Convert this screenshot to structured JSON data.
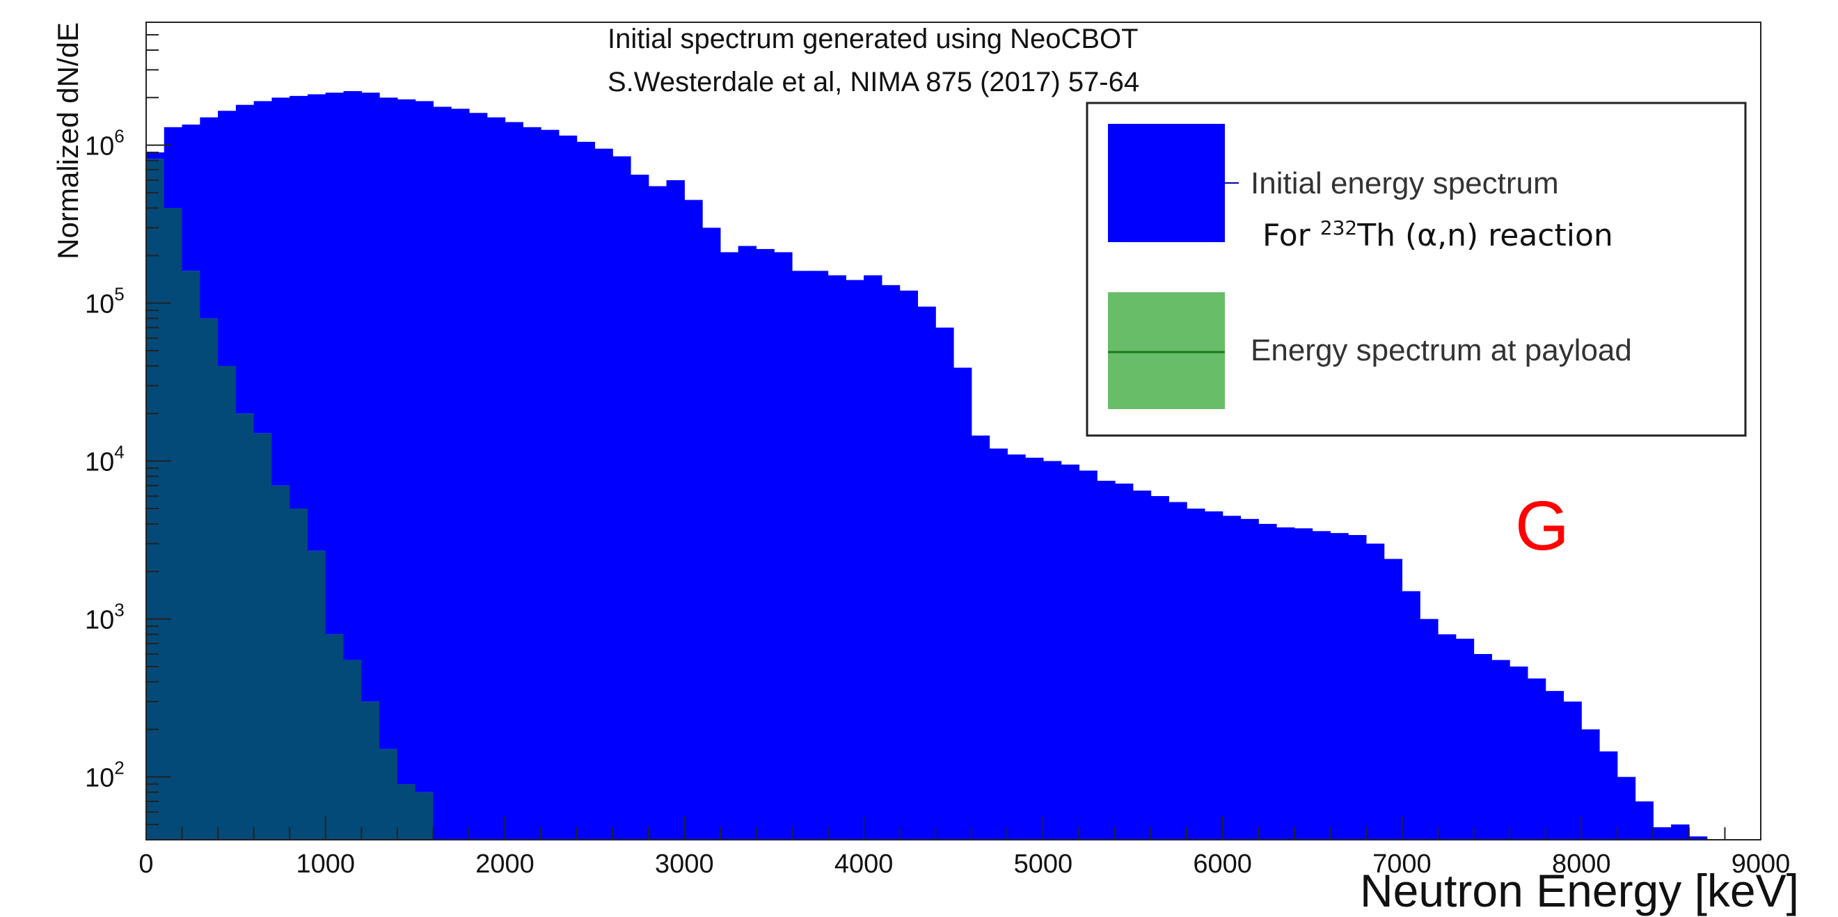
{
  "chart_data": {
    "type": "bar",
    "title": "",
    "xlabel": "Neutron Energy [keV]",
    "ylabel": "Normalized dN/dE",
    "xlim": [
      0,
      9000
    ],
    "ylim": [
      40,
      6000000
    ],
    "yscale": "log",
    "grid": false,
    "legend_position": "top-right",
    "bin_width": 100,
    "x_ticks": [
      "0",
      "1000",
      "2000",
      "3000",
      "4000",
      "5000",
      "6000",
      "7000",
      "8000",
      "9000"
    ],
    "y_ticks": [
      {
        "base": "10",
        "exp": "2",
        "value": 100
      },
      {
        "base": "10",
        "exp": "3",
        "value": 1000
      },
      {
        "base": "10",
        "exp": "4",
        "value": 10000
      },
      {
        "base": "10",
        "exp": "5",
        "value": 100000
      },
      {
        "base": "10",
        "exp": "6",
        "value": 1000000
      }
    ],
    "series": [
      {
        "name": "Initial energy spectrum",
        "color": "#0000ff",
        "values": [
          900000,
          1300000,
          1350000,
          1500000,
          1650000,
          1800000,
          1900000,
          2000000,
          2050000,
          2100000,
          2150000,
          2200000,
          2150000,
          2000000,
          1950000,
          1900000,
          1750000,
          1700000,
          1600000,
          1500000,
          1400000,
          1300000,
          1250000,
          1150000,
          1050000,
          950000,
          850000,
          650000,
          550000,
          600000,
          450000,
          300000,
          210000,
          230000,
          220000,
          210000,
          160000,
          160000,
          150000,
          140000,
          150000,
          130000,
          120000,
          95000,
          70000,
          39000,
          14500,
          12000,
          11000,
          10500,
          10000,
          9500,
          8700,
          7500,
          7200,
          6500,
          6000,
          5500,
          5000,
          4800,
          4500,
          4300,
          4000,
          3800,
          3750,
          3600,
          3500,
          3400,
          3000,
          2400,
          1500,
          1000,
          800,
          750,
          600,
          550,
          500,
          420,
          350,
          300,
          200,
          145,
          100,
          70,
          48,
          50,
          42,
          40,
          35,
          30,
          25
        ]
      },
      {
        "name": "Energy spectrum at payload",
        "color": "#35a835",
        "values": [
          820000,
          400000,
          160000,
          80000,
          40000,
          20000,
          15000,
          7000,
          5000,
          2700,
          800,
          550,
          300,
          150,
          90,
          80,
          0,
          0,
          0,
          0,
          0,
          0,
          0,
          0,
          0,
          0,
          0,
          0,
          0,
          0,
          0,
          0,
          0,
          0,
          0,
          0,
          0,
          0,
          0,
          0,
          0,
          0,
          0,
          0,
          0,
          0,
          0,
          0,
          0,
          0,
          0,
          0,
          0,
          0,
          0,
          0,
          0,
          0,
          0,
          0,
          0,
          0,
          0,
          0,
          0,
          0,
          0,
          0,
          0,
          0,
          0,
          0,
          0,
          0,
          0,
          0,
          0,
          0,
          0,
          0,
          0,
          0,
          0,
          0,
          0,
          0,
          0,
          0,
          0,
          0,
          0
        ]
      }
    ],
    "overlap_color": "#034a78",
    "annotations": {
      "source_line1": "Initial spectrum generated using NeoCBOT",
      "source_line2": "S.Westerdale et al, NIMA 875 (2017) 57-64",
      "legend_sub_prefix": "For ",
      "legend_sub_isotope_mass": "232",
      "legend_sub_rest": "Th (α,n) reaction",
      "marker_text": "G",
      "marker_color": "#ff0000"
    }
  }
}
